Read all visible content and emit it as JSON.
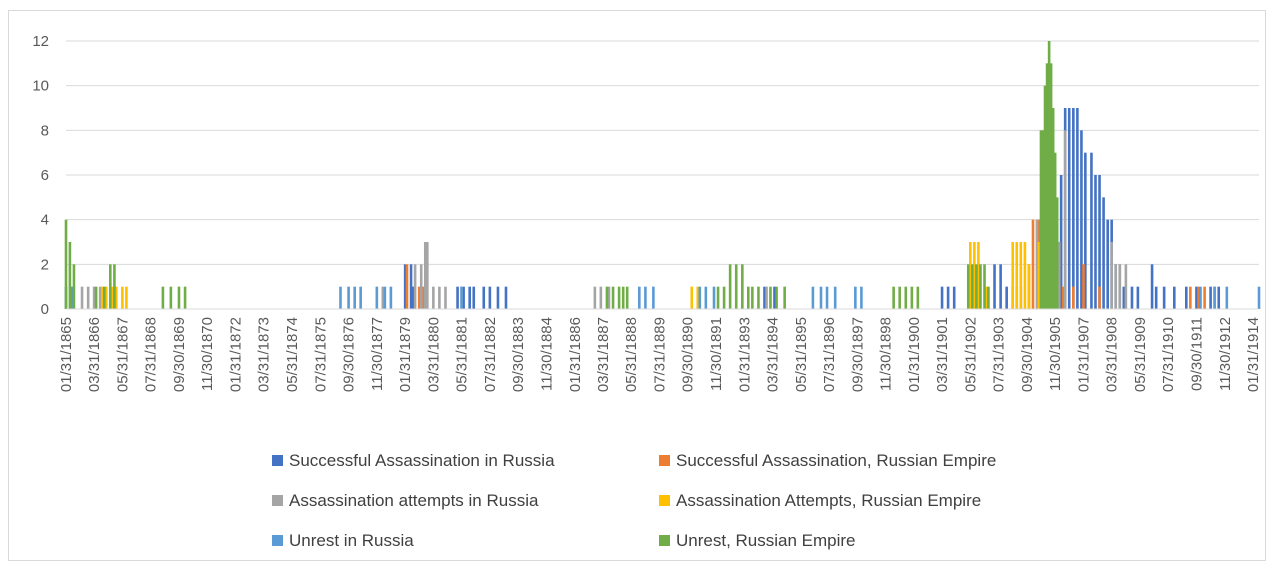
{
  "chart_data": {
    "type": "bar",
    "title": "",
    "xlabel": "",
    "ylabel": "",
    "ylim": [
      0,
      12
    ],
    "yticks": [
      0,
      2,
      4,
      6,
      8,
      10,
      12
    ],
    "grid": "horizontal",
    "legend_position": "bottom",
    "x_domain": [
      "01/31/1865",
      "04/30/1914"
    ],
    "x_tick_labels": [
      "01/31/1865",
      "03/31/1866",
      "05/31/1867",
      "07/31/1868",
      "09/30/1869",
      "11/30/1870",
      "01/31/1872",
      "03/31/1873",
      "05/31/1874",
      "07/31/1875",
      "09/30/1876",
      "11/30/1877",
      "01/31/1879",
      "03/31/1880",
      "05/31/1881",
      "07/31/1882",
      "09/30/1883",
      "11/30/1884",
      "01/31/1886",
      "03/31/1887",
      "05/31/1888",
      "07/31/1889",
      "09/30/1890",
      "11/30/1891",
      "01/31/1893",
      "03/31/1894",
      "05/31/1895",
      "07/31/1896",
      "09/30/1897",
      "11/30/1898",
      "01/31/1900",
      "03/31/1901",
      "05/31/1902",
      "07/31/1903",
      "09/30/1904",
      "11/30/1905",
      "01/31/1907",
      "03/31/1908",
      "05/31/1909",
      "07/31/1910",
      "09/30/1911",
      "11/30/1912",
      "01/31/1914"
    ],
    "series": [
      {
        "name": "Successful Assassination in Russia",
        "color": "#4472C4",
        "points": [
          [
            "01/31/1879",
            2
          ],
          [
            "04/30/1879",
            2
          ],
          [
            "05/31/1879",
            1
          ],
          [
            "03/31/1881",
            1
          ],
          [
            "06/30/1881",
            1
          ],
          [
            "09/30/1881",
            1
          ],
          [
            "11/30/1881",
            1
          ],
          [
            "04/30/1882",
            1
          ],
          [
            "07/31/1882",
            1
          ],
          [
            "11/30/1882",
            1
          ],
          [
            "03/31/1883",
            1
          ],
          [
            "11/30/1893",
            1
          ],
          [
            "04/30/1894",
            1
          ],
          [
            "03/31/1901",
            1
          ],
          [
            "06/30/1901",
            1
          ],
          [
            "09/30/1901",
            1
          ],
          [
            "05/31/1903",
            2
          ],
          [
            "08/31/1903",
            2
          ],
          [
            "11/30/1903",
            1
          ],
          [
            "02/29/1904",
            1
          ],
          [
            "04/30/1904",
            1
          ],
          [
            "06/30/1904",
            1
          ],
          [
            "12/31/1905",
            2
          ],
          [
            "02/28/1906",
            6
          ],
          [
            "04/30/1906",
            9
          ],
          [
            "06/30/1906",
            9
          ],
          [
            "08/31/1906",
            9
          ],
          [
            "10/31/1906",
            9
          ],
          [
            "12/31/1906",
            8
          ],
          [
            "02/28/1907",
            7
          ],
          [
            "05/31/1907",
            7
          ],
          [
            "07/31/1907",
            6
          ],
          [
            "09/30/1907",
            6
          ],
          [
            "11/30/1907",
            5
          ],
          [
            "01/31/1908",
            4
          ],
          [
            "03/31/1908",
            4
          ],
          [
            "05/31/1908",
            2
          ],
          [
            "07/31/1908",
            2
          ],
          [
            "09/30/1908",
            1
          ],
          [
            "01/31/1909",
            1
          ],
          [
            "04/30/1909",
            1
          ],
          [
            "11/30/1909",
            2
          ],
          [
            "01/31/1910",
            1
          ],
          [
            "05/31/1910",
            1
          ],
          [
            "10/31/1910",
            1
          ],
          [
            "04/30/1911",
            1
          ],
          [
            "09/30/1911",
            1
          ],
          [
            "04/30/1912",
            1
          ],
          [
            "08/31/1912",
            1
          ]
        ]
      },
      {
        "name": "Successful Assassination, Russian Empire",
        "color": "#ED7D31",
        "points": [
          [
            "02/28/1879",
            2
          ],
          [
            "08/31/1879",
            1
          ],
          [
            "10/31/1879",
            1
          ],
          [
            "10/31/1904",
            2
          ],
          [
            "12/31/1904",
            4
          ],
          [
            "03/31/1905",
            4
          ],
          [
            "05/31/1905",
            3
          ],
          [
            "08/31/1905",
            3
          ],
          [
            "03/31/1906",
            1
          ],
          [
            "08/31/1906",
            1
          ],
          [
            "01/31/1907",
            2
          ],
          [
            "09/30/1907",
            1
          ],
          [
            "06/30/1911",
            1
          ],
          [
            "10/31/1911",
            1
          ],
          [
            "01/31/1912",
            1
          ],
          [
            "06/30/1912",
            1
          ]
        ]
      },
      {
        "name": "Assassination attempts in Russia",
        "color": "#A5A5A5",
        "points": [
          [
            "09/30/1865",
            1
          ],
          [
            "12/31/1865",
            1
          ],
          [
            "03/31/1866",
            1
          ],
          [
            "06/30/1866",
            1
          ],
          [
            "02/28/1878",
            1
          ],
          [
            "06/30/1879",
            2
          ],
          [
            "09/30/1879",
            2
          ],
          [
            "11/30/1879",
            3
          ],
          [
            "12/31/1879",
            3
          ],
          [
            "03/31/1880",
            1
          ],
          [
            "06/30/1880",
            1
          ],
          [
            "09/30/1880",
            1
          ],
          [
            "05/31/1881",
            1
          ],
          [
            "11/30/1886",
            1
          ],
          [
            "02/28/1887",
            1
          ],
          [
            "06/30/1887",
            1
          ],
          [
            "12/31/1893",
            1
          ],
          [
            "06/30/1904",
            2
          ],
          [
            "02/28/1905",
            4
          ],
          [
            "01/31/1906",
            3
          ],
          [
            "04/30/1906",
            8
          ],
          [
            "03/31/1908",
            3
          ],
          [
            "05/31/1908",
            2
          ],
          [
            "07/31/1908",
            2
          ],
          [
            "10/31/1908",
            2
          ]
        ]
      },
      {
        "name": "Assassination Attempts, Russian Empire",
        "color": "#FFC000",
        "points": [
          [
            "07/31/1866",
            1
          ],
          [
            "09/30/1866",
            1
          ],
          [
            "12/31/1866",
            1
          ],
          [
            "02/28/1867",
            1
          ],
          [
            "05/31/1867",
            1
          ],
          [
            "07/31/1867",
            1
          ],
          [
            "11/30/1890",
            1
          ],
          [
            "02/28/1891",
            1
          ],
          [
            "05/31/1902",
            3
          ],
          [
            "07/31/1902",
            3
          ],
          [
            "09/30/1902",
            3
          ],
          [
            "01/31/1903",
            1
          ],
          [
            "02/29/1904",
            3
          ],
          [
            "04/30/1904",
            3
          ],
          [
            "06/30/1904",
            3
          ],
          [
            "08/31/1904",
            3
          ],
          [
            "10/31/1904",
            2
          ],
          [
            "03/31/1905",
            3
          ]
        ]
      },
      {
        "name": "Unrest in Russia",
        "color": "#5B9BD5",
        "points": [
          [
            "01/31/1865",
            1
          ],
          [
            "04/30/1865",
            1
          ],
          [
            "05/31/1876",
            1
          ],
          [
            "09/30/1876",
            1
          ],
          [
            "12/31/1876",
            1
          ],
          [
            "03/31/1877",
            1
          ],
          [
            "11/30/1877",
            1
          ],
          [
            "03/31/1878",
            1
          ],
          [
            "06/30/1878",
            1
          ],
          [
            "05/31/1881",
            1
          ],
          [
            "09/30/1888",
            1
          ],
          [
            "12/31/1888",
            1
          ],
          [
            "04/30/1889",
            1
          ],
          [
            "03/31/1891",
            1
          ],
          [
            "06/30/1891",
            1
          ],
          [
            "10/31/1891",
            1
          ],
          [
            "11/30/1895",
            1
          ],
          [
            "03/31/1896",
            1
          ],
          [
            "06/30/1896",
            1
          ],
          [
            "10/31/1896",
            1
          ],
          [
            "08/31/1897",
            1
          ],
          [
            "11/30/1897",
            1
          ],
          [
            "10/31/1905",
            5
          ],
          [
            "11/30/1911",
            1
          ],
          [
            "06/30/1912",
            1
          ],
          [
            "12/31/1912",
            1
          ],
          [
            "04/30/1914",
            1
          ]
        ]
      },
      {
        "name": "Unrest, Russian Empire",
        "color": "#70AD47",
        "points": [
          [
            "01/31/1865",
            4
          ],
          [
            "03/31/1865",
            3
          ],
          [
            "05/31/1865",
            2
          ],
          [
            "04/30/1866",
            1
          ],
          [
            "08/31/1866",
            1
          ],
          [
            "11/30/1866",
            2
          ],
          [
            "01/31/1867",
            2
          ],
          [
            "01/31/1869",
            1
          ],
          [
            "05/31/1869",
            1
          ],
          [
            "09/30/1869",
            1
          ],
          [
            "12/31/1869",
            1
          ],
          [
            "05/31/1887",
            1
          ],
          [
            "08/31/1887",
            1
          ],
          [
            "11/30/1887",
            1
          ],
          [
            "01/31/1888",
            1
          ],
          [
            "03/31/1888",
            1
          ],
          [
            "12/31/1891",
            1
          ],
          [
            "03/31/1892",
            1
          ],
          [
            "06/30/1892",
            2
          ],
          [
            "09/30/1892",
            2
          ],
          [
            "12/31/1892",
            2
          ],
          [
            "03/31/1893",
            1
          ],
          [
            "05/31/1893",
            1
          ],
          [
            "08/31/1893",
            1
          ],
          [
            "02/28/1894",
            1
          ],
          [
            "05/31/1894",
            1
          ],
          [
            "09/30/1894",
            1
          ],
          [
            "03/31/1899",
            1
          ],
          [
            "06/30/1899",
            1
          ],
          [
            "09/30/1899",
            1
          ],
          [
            "12/31/1899",
            1
          ],
          [
            "03/31/1900",
            1
          ],
          [
            "04/30/1902",
            2
          ],
          [
            "06/30/1902",
            2
          ],
          [
            "08/31/1902",
            2
          ],
          [
            "10/31/1902",
            2
          ],
          [
            "12/31/1902",
            2
          ],
          [
            "02/28/1903",
            1
          ],
          [
            "04/30/1905",
            8
          ],
          [
            "05/31/1905",
            8
          ],
          [
            "06/30/1905",
            10
          ],
          [
            "07/31/1905",
            11
          ],
          [
            "08/31/1905",
            12
          ],
          [
            "09/30/1905",
            11
          ],
          [
            "10/31/1905",
            9
          ],
          [
            "11/30/1905",
            7
          ],
          [
            "12/31/1905",
            5
          ]
        ]
      }
    ]
  }
}
